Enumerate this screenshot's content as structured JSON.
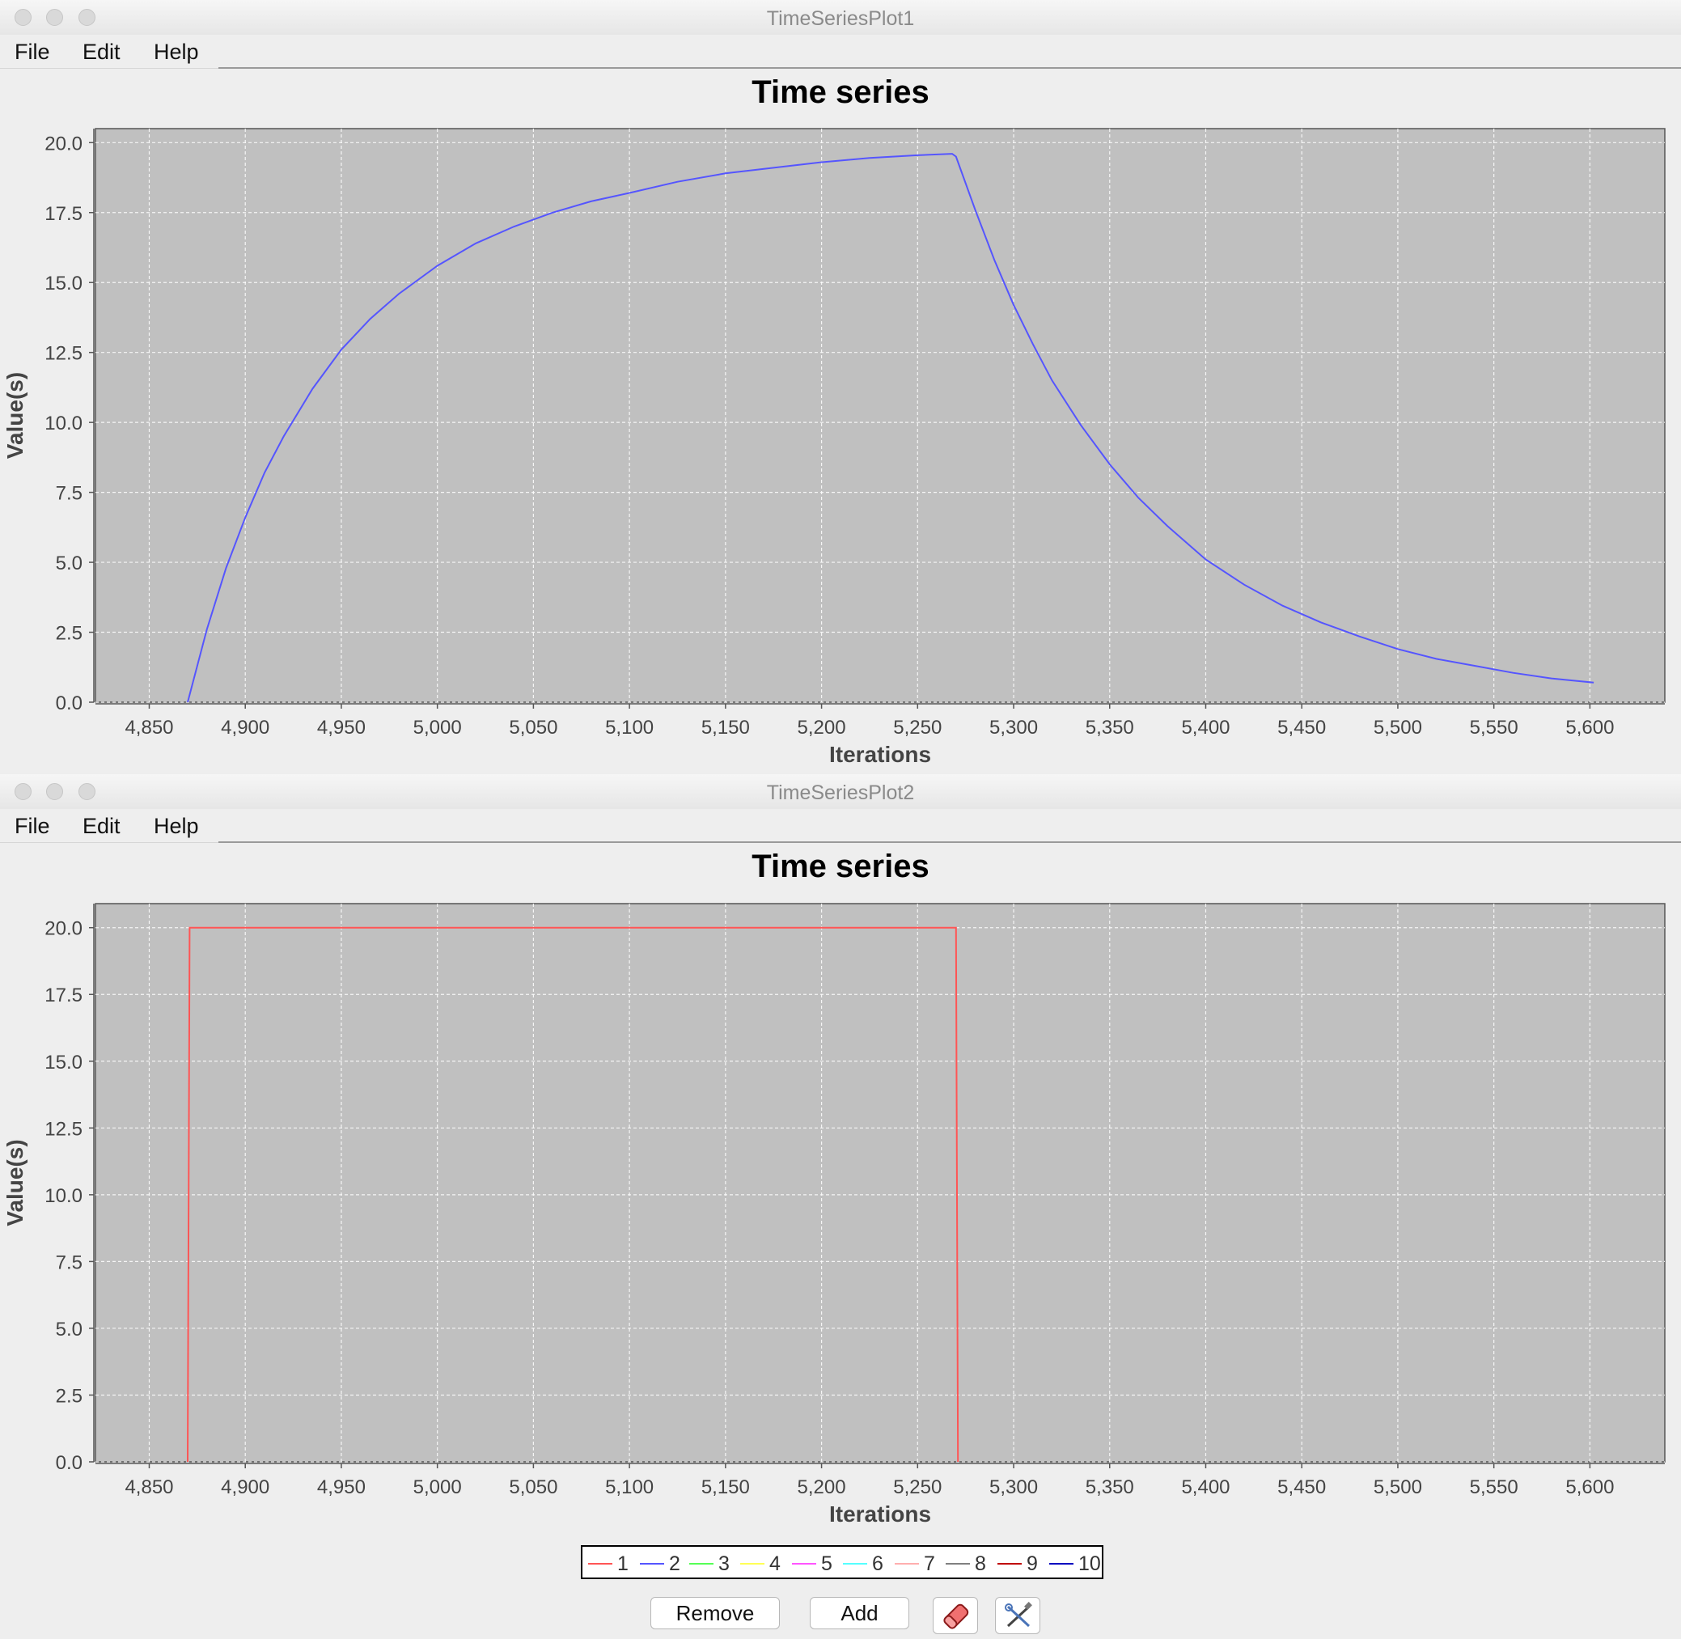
{
  "windows": [
    {
      "title": "TimeSeriesPlot1",
      "menu": [
        "File",
        "Edit",
        "Help"
      ]
    },
    {
      "title": "TimeSeriesPlot2",
      "menu": [
        "File",
        "Edit",
        "Help"
      ]
    }
  ],
  "legend": [
    {
      "label": "1",
      "color": "#ff5555"
    },
    {
      "label": "2",
      "color": "#5555ff"
    },
    {
      "label": "3",
      "color": "#55ff55"
    },
    {
      "label": "4",
      "color": "#ffff55"
    },
    {
      "label": "5",
      "color": "#ff55ff"
    },
    {
      "label": "6",
      "color": "#55ffff"
    },
    {
      "label": "7",
      "color": "#ffafaf"
    },
    {
      "label": "8",
      "color": "#808080"
    },
    {
      "label": "9",
      "color": "#c00000"
    },
    {
      "label": "10",
      "color": "#0000c0"
    }
  ],
  "controls": {
    "remove_label": "Remove",
    "add_label": "Add",
    "eraser_icon": "eraser-icon",
    "tools_icon": "tools-icon"
  },
  "chart_data": [
    {
      "type": "line",
      "title": "Time series",
      "xlabel": "Iterations",
      "ylabel": "Value(s)",
      "xlim": [
        4822,
        5639
      ],
      "ylim": [
        0,
        20.5
      ],
      "xticks": [
        4850,
        4900,
        4950,
        5000,
        5050,
        5100,
        5150,
        5200,
        5250,
        5300,
        5350,
        5400,
        5450,
        5500,
        5550,
        5600
      ],
      "xtick_labels": [
        "4,850",
        "4,900",
        "4,950",
        "5,000",
        "5,050",
        "5,100",
        "5,150",
        "5,200",
        "5,250",
        "5,300",
        "5,350",
        "5,400",
        "5,450",
        "5,500",
        "5,550",
        "5,600"
      ],
      "yticks": [
        0,
        2.5,
        5,
        7.5,
        10,
        12.5,
        15,
        17.5,
        20
      ],
      "ytick_labels": [
        "0.0",
        "2.5",
        "5.0",
        "7.5",
        "10.0",
        "12.5",
        "15.0",
        "17.5",
        "20.0"
      ],
      "grid": true,
      "series": [
        {
          "color": "#5555ff",
          "x": [
            4870,
            4880,
            4890,
            4900,
            4910,
            4920,
            4935,
            4950,
            4965,
            4980,
            5000,
            5020,
            5040,
            5060,
            5080,
            5100,
            5125,
            5150,
            5175,
            5200,
            5225,
            5250,
            5268,
            5270,
            5280,
            5290,
            5300,
            5310,
            5320,
            5335,
            5350,
            5365,
            5380,
            5400,
            5420,
            5440,
            5460,
            5480,
            5500,
            5520,
            5540,
            5560,
            5580,
            5602
          ],
          "y": [
            0.0,
            2.6,
            4.8,
            6.6,
            8.2,
            9.5,
            11.2,
            12.6,
            13.7,
            14.6,
            15.6,
            16.4,
            17.0,
            17.5,
            17.9,
            18.2,
            18.6,
            18.9,
            19.1,
            19.3,
            19.45,
            19.55,
            19.6,
            19.5,
            17.6,
            15.8,
            14.2,
            12.8,
            11.5,
            9.9,
            8.5,
            7.3,
            6.3,
            5.1,
            4.2,
            3.45,
            2.85,
            2.35,
            1.9,
            1.55,
            1.3,
            1.05,
            0.85,
            0.7
          ]
        }
      ]
    },
    {
      "type": "line",
      "title": "Time series",
      "xlabel": "Iterations",
      "ylabel": "Value(s)",
      "xlim": [
        4822,
        5639
      ],
      "ylim": [
        0,
        20.9
      ],
      "xticks": [
        4850,
        4900,
        4950,
        5000,
        5050,
        5100,
        5150,
        5200,
        5250,
        5300,
        5350,
        5400,
        5450,
        5500,
        5550,
        5600
      ],
      "xtick_labels": [
        "4,850",
        "4,900",
        "4,950",
        "5,000",
        "5,050",
        "5,100",
        "5,150",
        "5,200",
        "5,250",
        "5,300",
        "5,350",
        "5,400",
        "5,450",
        "5,500",
        "5,550",
        "5,600"
      ],
      "yticks": [
        0,
        2.5,
        5,
        7.5,
        10,
        12.5,
        15,
        17.5,
        20
      ],
      "ytick_labels": [
        "0.0",
        "2.5",
        "5.0",
        "7.5",
        "10.0",
        "12.5",
        "15.0",
        "17.5",
        "20.0"
      ],
      "grid": true,
      "series": [
        {
          "color": "#ff5555",
          "x": [
            4870,
            4871,
            5270,
            5271
          ],
          "y": [
            0,
            20,
            20,
            0
          ]
        }
      ]
    }
  ]
}
